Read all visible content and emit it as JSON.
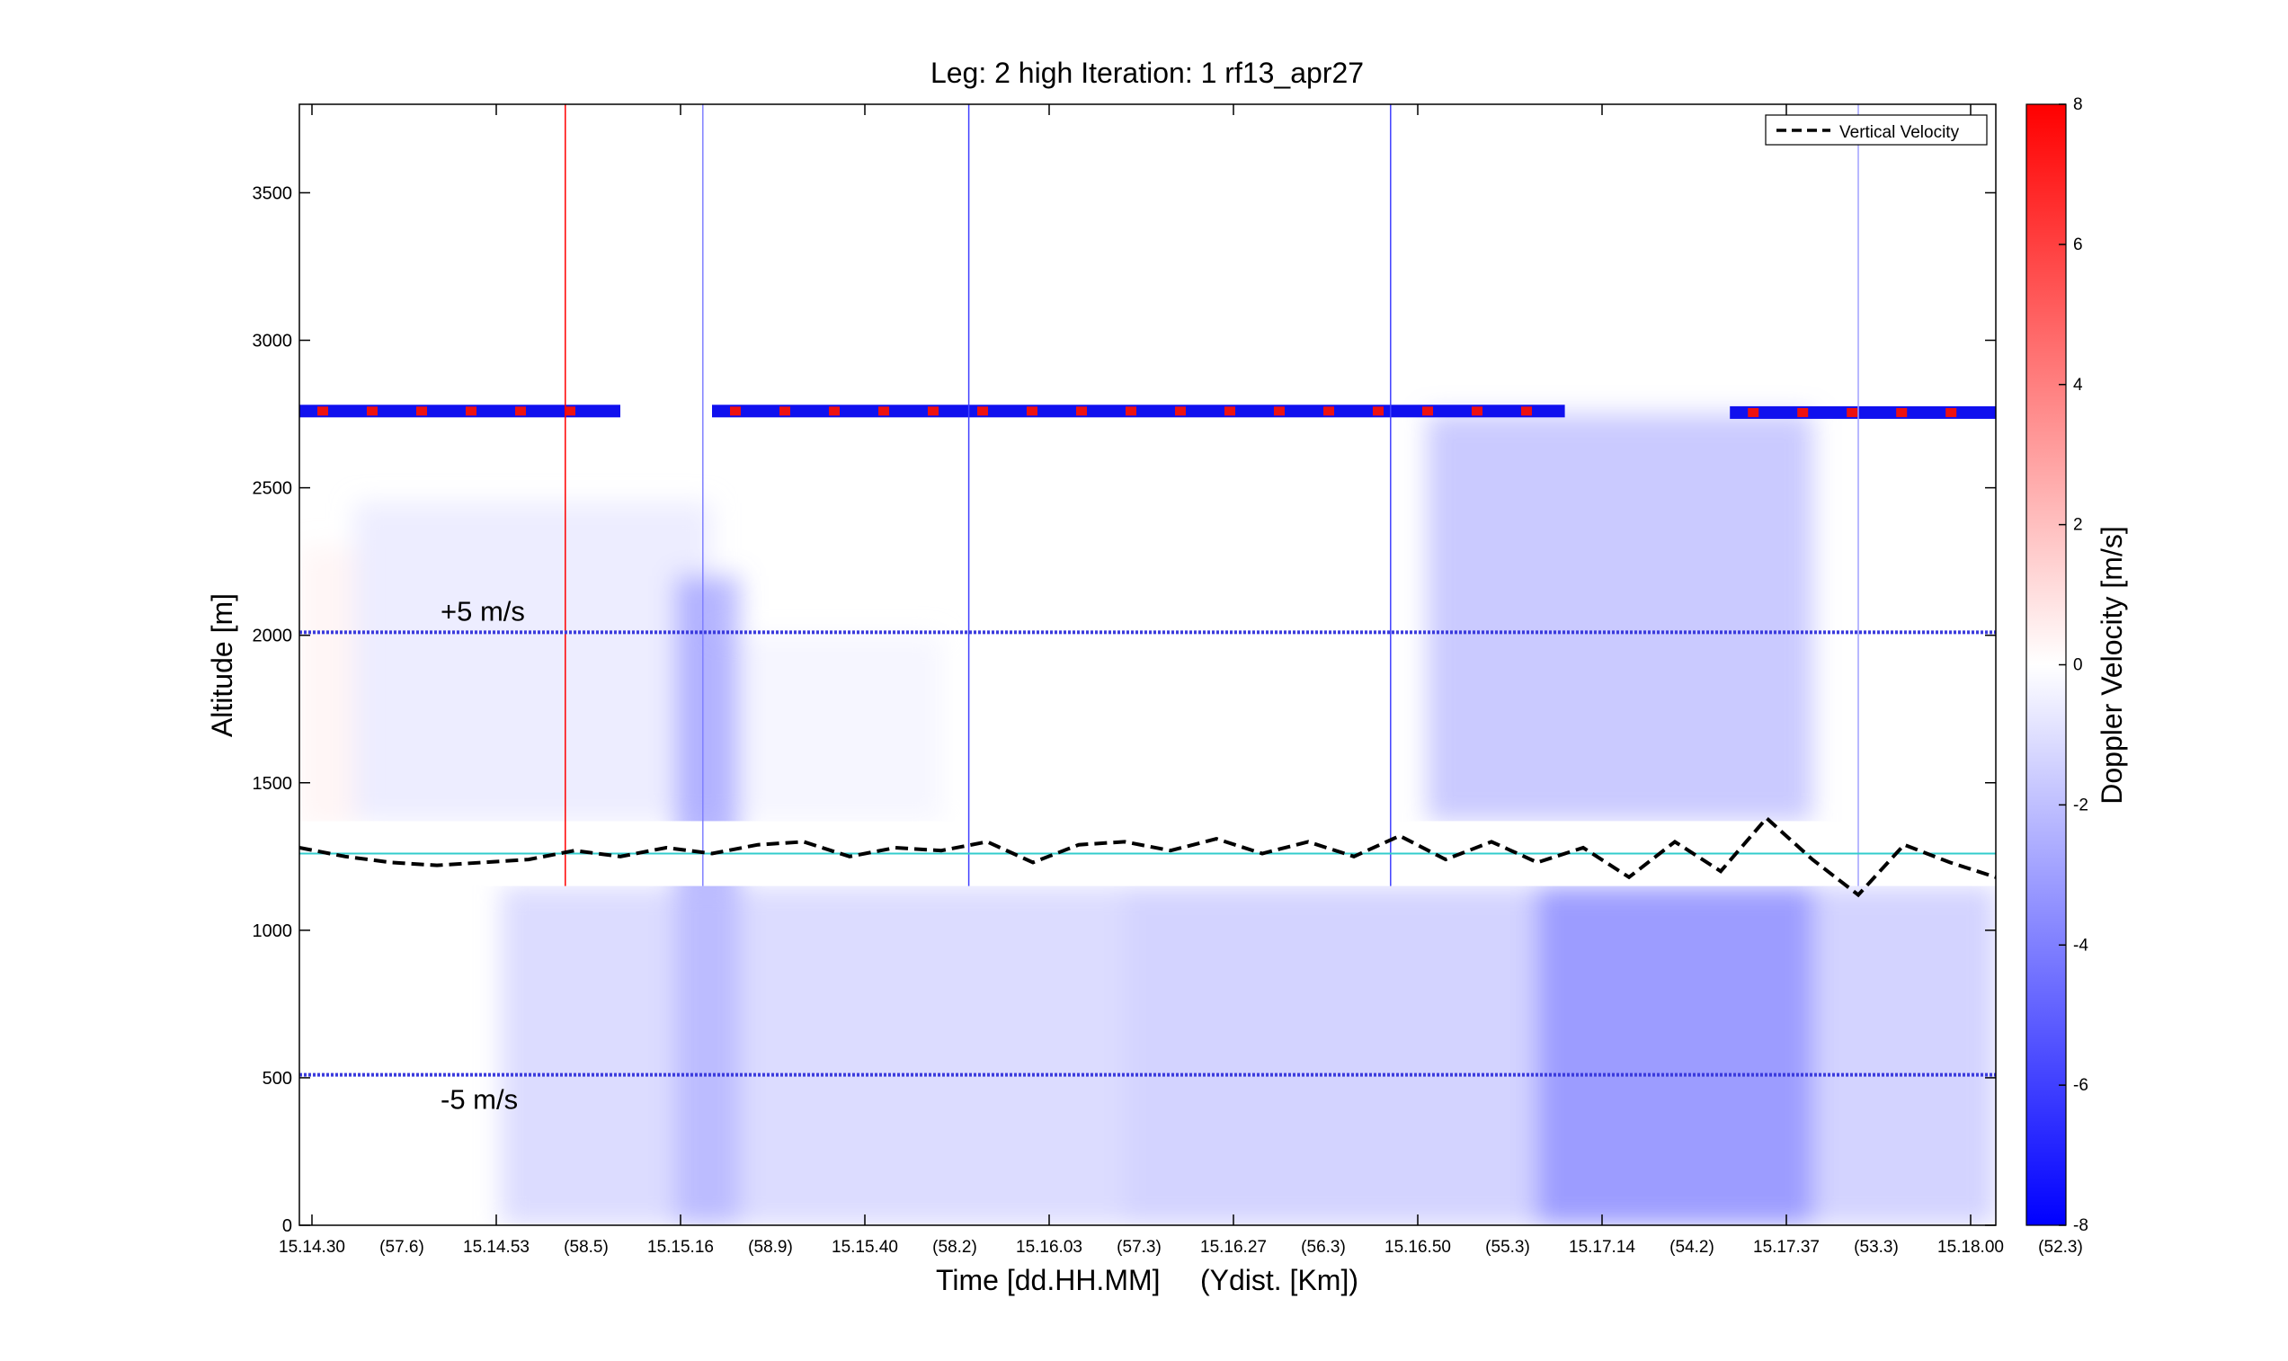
{
  "chart_data": {
    "type": "heatmap",
    "title": "Leg: 2 high Iteration: 1  rf13_apr27",
    "xlabel": "Time [dd.HH.MM]     (Ydist. [Km])",
    "ylabel": "Altitude [m]",
    "ylim": [
      0,
      3800
    ],
    "y_ticks": [
      0,
      500,
      1000,
      1500,
      2000,
      2500,
      3000,
      3500
    ],
    "x_tick_labels": [
      "15.14.30",
      "(57.6)",
      "15.14.53",
      "(58.5)",
      "15.15.16",
      "(58.9)",
      "15.15.40",
      "(58.2)",
      "15.16.03",
      "(57.3)",
      "15.16.27",
      "(56.3)",
      "15.16.50",
      "(55.3)",
      "15.17.14",
      "(54.2)",
      "15.17.37",
      "(53.3)",
      "15.18.00",
      "(52.3)"
    ],
    "colorbar": {
      "label": "Doppler Velocity [m/s]",
      "ticks": [
        8,
        6,
        4,
        2,
        0,
        -2,
        -4,
        -6,
        -8
      ],
      "range": [
        -8,
        8
      ],
      "color_max": "#ff0000",
      "color_zero": "#ffffff",
      "color_min": "#0000ff"
    },
    "reference_lines": [
      {
        "label": "+5 m/s",
        "altitude": 2010,
        "color": "#3b3bdd"
      },
      {
        "label": "-5 m/s",
        "altitude": 510,
        "color": "#3b3bdd"
      }
    ],
    "legend": {
      "entries": [
        "Vertical Velocity"
      ],
      "placement": "top-right"
    },
    "series": [
      {
        "name": "Vertical Velocity",
        "style": "dashed",
        "color": "#000000",
        "x": [
          0,
          0.5,
          1,
          1.5,
          2,
          2.5,
          3,
          3.5,
          4,
          4.5,
          5,
          5.5,
          6,
          6.5,
          7,
          7.5,
          8,
          8.5,
          9,
          9.5,
          10,
          10.5,
          11,
          11.5,
          12,
          12.5,
          13,
          13.5,
          14,
          14.5,
          15,
          15.5,
          16,
          16.5,
          17,
          17.5,
          18,
          18.5
        ],
        "y": [
          1280,
          1250,
          1230,
          1220,
          1230,
          1240,
          1270,
          1250,
          1280,
          1260,
          1290,
          1300,
          1250,
          1280,
          1270,
          1300,
          1230,
          1290,
          1300,
          1270,
          1310,
          1260,
          1300,
          1250,
          1320,
          1240,
          1300,
          1230,
          1280,
          1180,
          1300,
          1200,
          1380,
          1240,
          1120,
          1290,
          1230,
          1180
        ]
      }
    ],
    "velocity_field_regions": [
      {
        "t": [
          0,
          0.65
        ],
        "alt": [
          1350,
          2300
        ],
        "v": 0.5
      },
      {
        "t": [
          0.6,
          4.5
        ],
        "alt": [
          1370,
          2450
        ],
        "v": -1.0
      },
      {
        "t": [
          4.5,
          7
        ],
        "alt": [
          1370,
          2000
        ],
        "v": -0.5
      },
      {
        "t": [
          12.3,
          16.5
        ],
        "alt": [
          1370,
          2750
        ],
        "v": -3.0
      },
      {
        "t": [
          4.1,
          4.8
        ],
        "alt": [
          0,
          2200
        ],
        "v": -4.0
      },
      {
        "t": [
          2.2,
          9
        ],
        "alt": [
          0,
          1150
        ],
        "v": -2.0
      },
      {
        "t": [
          9,
          18.5
        ],
        "alt": [
          0,
          1150
        ],
        "v": -2.5
      },
      {
        "t": [
          13.5,
          16.5
        ],
        "alt": [
          0,
          1150
        ],
        "v": -4.5
      }
    ],
    "cloud_top_band": [
      {
        "t": [
          0,
          3.5
        ],
        "altitude": 2760
      },
      {
        "t": [
          4.5,
          13.8
        ],
        "altitude": 2760
      },
      {
        "t": [
          15.6,
          18.5
        ],
        "altitude": 2755
      }
    ],
    "vertical_markers": [
      {
        "t": 2.9,
        "color": "#ff0000"
      },
      {
        "t": 4.4,
        "color": "#8080ff"
      },
      {
        "t": 7.3,
        "color": "#4040ff"
      },
      {
        "t": 11.9,
        "color": "#4040ff"
      },
      {
        "t": 17.0,
        "color": "#a0a0ff"
      }
    ],
    "mean_line": {
      "altitude": 1260,
      "color": "#33cccc"
    }
  }
}
